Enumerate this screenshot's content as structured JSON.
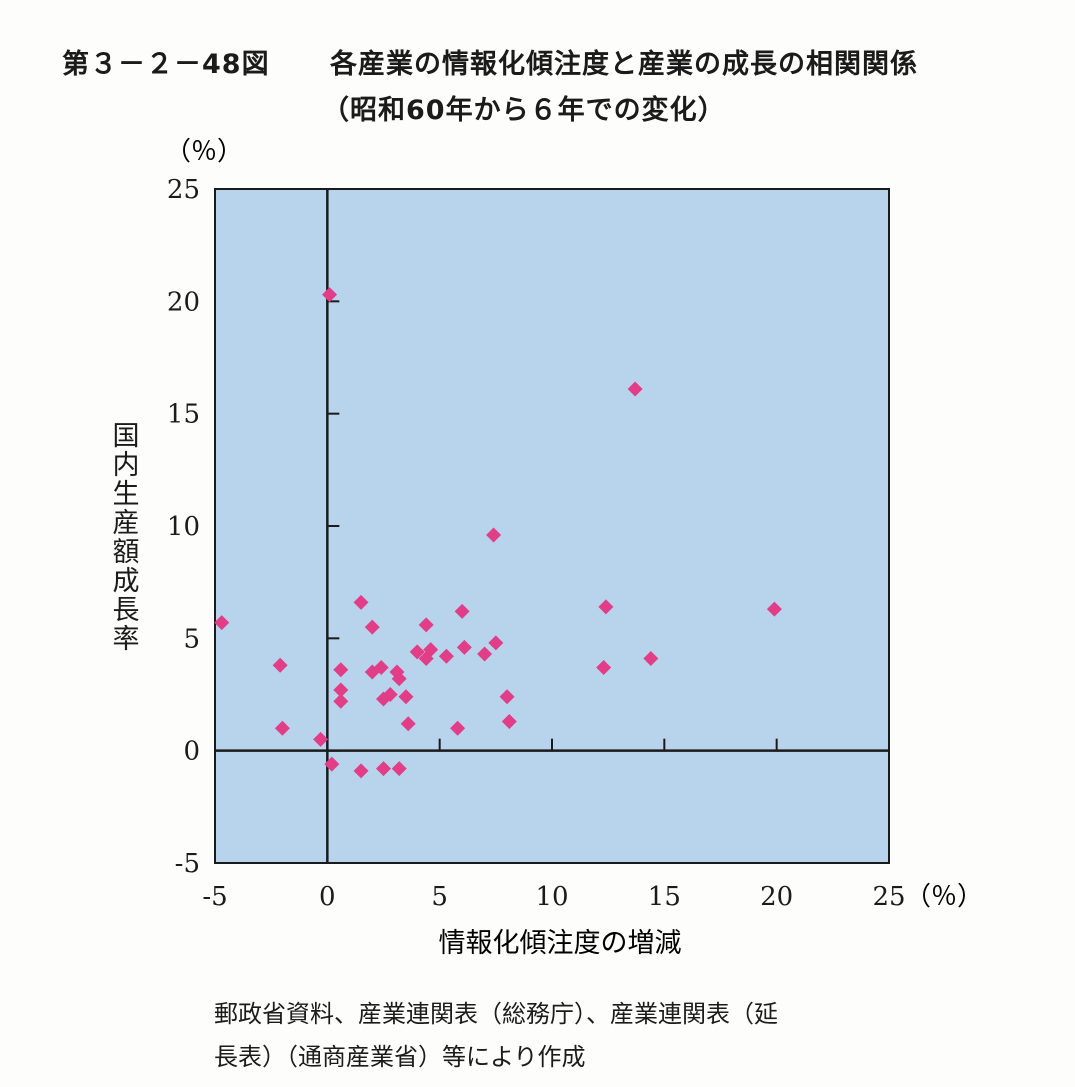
{
  "title": {
    "number": "第３－２－48図",
    "main": "各産業の情報化傾注度と産業の成長の相関関係",
    "subtitle": "（昭和60年から６年での変化）"
  },
  "source": {
    "line1": "郵政省資料、産業連関表（総務庁）、産業連関表（延",
    "line2": "長表）（通商産業省）等により作成"
  },
  "colors": {
    "plot_background": "#b7d4ec",
    "marker": "#e23e88",
    "axis": "#1b1b1b"
  },
  "chart_data": {
    "type": "scatter",
    "xlabel": "情報化傾注度の増減",
    "ylabel": "国内生産額成長率",
    "x_unit": "（％）",
    "y_unit": "（％）",
    "xlim": [
      -5,
      25
    ],
    "ylim": [
      -5,
      25
    ],
    "xticks": [
      "-5",
      "0",
      "5",
      "10",
      "15",
      "20",
      "25"
    ],
    "yticks": [
      "25",
      "20",
      "15",
      "10",
      "5",
      "0",
      "-5"
    ],
    "xtick_values": [
      -5,
      0,
      5,
      10,
      15,
      20,
      25
    ],
    "ytick_values": [
      25,
      20,
      15,
      10,
      5,
      0,
      -5
    ],
    "grid": false,
    "marker": "diamond",
    "points": [
      {
        "x": -4.7,
        "y": 5.7
      },
      {
        "x": -2.1,
        "y": 3.8
      },
      {
        "x": -2.0,
        "y": 1.0
      },
      {
        "x": -0.3,
        "y": 0.5
      },
      {
        "x": 0.1,
        "y": 20.3
      },
      {
        "x": 0.2,
        "y": -0.6
      },
      {
        "x": 0.6,
        "y": 3.6
      },
      {
        "x": 0.6,
        "y": 2.7
      },
      {
        "x": 0.6,
        "y": 2.2
      },
      {
        "x": 1.5,
        "y": 6.6
      },
      {
        "x": 1.5,
        "y": -0.9
      },
      {
        "x": 2.0,
        "y": 5.5
      },
      {
        "x": 2.0,
        "y": 3.5
      },
      {
        "x": 2.4,
        "y": 3.7
      },
      {
        "x": 2.5,
        "y": 2.3
      },
      {
        "x": 2.5,
        "y": -0.8
      },
      {
        "x": 2.8,
        "y": 2.5
      },
      {
        "x": 3.1,
        "y": 3.5
      },
      {
        "x": 3.2,
        "y": 3.2
      },
      {
        "x": 3.2,
        "y": -0.8
      },
      {
        "x": 3.5,
        "y": 2.4
      },
      {
        "x": 3.6,
        "y": 1.2
      },
      {
        "x": 4.0,
        "y": 4.4
      },
      {
        "x": 4.4,
        "y": 5.6
      },
      {
        "x": 4.4,
        "y": 4.1
      },
      {
        "x": 4.6,
        "y": 4.5
      },
      {
        "x": 5.3,
        "y": 4.2
      },
      {
        "x": 5.8,
        "y": 1.0
      },
      {
        "x": 6.0,
        "y": 6.2
      },
      {
        "x": 6.1,
        "y": 4.6
      },
      {
        "x": 7.0,
        "y": 4.3
      },
      {
        "x": 7.4,
        "y": 9.6
      },
      {
        "x": 7.5,
        "y": 4.8
      },
      {
        "x": 8.0,
        "y": 2.4
      },
      {
        "x": 8.1,
        "y": 1.3
      },
      {
        "x": 12.3,
        "y": 3.7
      },
      {
        "x": 12.4,
        "y": 6.4
      },
      {
        "x": 13.7,
        "y": 16.1
      },
      {
        "x": 14.4,
        "y": 4.1
      },
      {
        "x": 19.9,
        "y": 6.3
      }
    ]
  }
}
